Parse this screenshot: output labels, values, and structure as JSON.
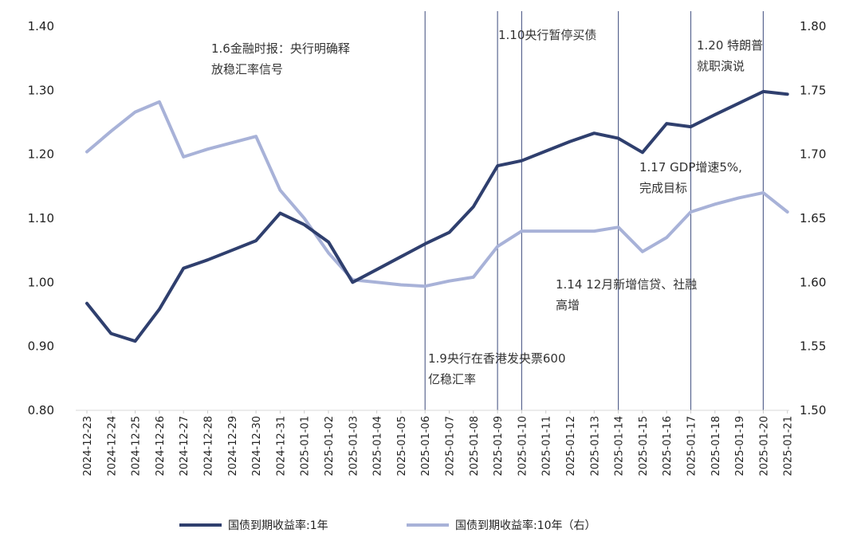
{
  "chart_data": {
    "type": "line",
    "title": "",
    "x": [
      "2024-12-23",
      "2024-12-24",
      "2024-12-25",
      "2024-12-26",
      "2024-12-27",
      "2024-12-28",
      "2024-12-29",
      "2024-12-30",
      "2024-12-31",
      "2025-01-01",
      "2025-01-02",
      "2025-01-03",
      "2025-01-04",
      "2025-01-05",
      "2025-01-06",
      "2025-01-07",
      "2025-01-08",
      "2025-01-09",
      "2025-01-10",
      "2025-01-11",
      "2025-01-12",
      "2025-01-13",
      "2025-01-14",
      "2025-01-15",
      "2025-01-16",
      "2025-01-17",
      "2025-01-18",
      "2025-01-19",
      "2025-01-20",
      "2025-01-21"
    ],
    "y_left": {
      "range": [
        0.8,
        1.4
      ],
      "ticks": [
        "0.80",
        "0.90",
        "1.00",
        "1.10",
        "1.20",
        "1.30",
        "1.40"
      ]
    },
    "y_right": {
      "range": [
        1.5,
        1.8
      ],
      "ticks": [
        "1.50",
        "1.55",
        "1.60",
        "1.65",
        "1.70",
        "1.75",
        "1.80"
      ]
    },
    "series": [
      {
        "name": "国债到期收益率:1年",
        "axis": "left",
        "color": "#2f3f6e",
        "values": [
          0.967,
          0.92,
          0.908,
          0.958,
          1.022,
          1.035,
          1.05,
          1.065,
          1.108,
          1.09,
          1.063,
          1.0,
          1.02,
          1.04,
          1.06,
          1.078,
          1.118,
          1.182,
          1.19,
          1.205,
          1.22,
          1.233,
          1.225,
          1.203,
          1.248,
          1.243,
          1.262,
          1.28,
          1.298,
          1.294
        ]
      },
      {
        "name": "国债到期收益率:10年（右）",
        "axis": "right",
        "color": "#a8b2d8",
        "values": [
          1.702,
          1.718,
          1.733,
          1.741,
          1.698,
          1.704,
          1.709,
          1.714,
          1.672,
          1.65,
          1.623,
          1.602,
          1.6,
          1.598,
          1.597,
          1.601,
          1.604,
          1.628,
          1.64,
          1.64,
          1.64,
          1.64,
          1.643,
          1.624,
          1.635,
          1.655,
          1.661,
          1.666,
          1.67,
          1.655
        ]
      }
    ],
    "event_lines_at": [
      "2025-01-06",
      "2025-01-09",
      "2025-01-10",
      "2025-01-14",
      "2025-01-17",
      "2025-01-20"
    ],
    "annotations": [
      {
        "lines": [
          "1.6金融时报：央行明确释",
          "放稳汇率信号"
        ]
      },
      {
        "lines": [
          "1.10央行暂停买债"
        ]
      },
      {
        "lines": [
          "1.20 特朗普",
          "就职演说"
        ]
      },
      {
        "lines": [
          "1.17 GDP增速5%,",
          "完成目标"
        ]
      },
      {
        "lines": [
          "1.14 12月新增信贷、社融",
          "高增"
        ]
      },
      {
        "lines": [
          "1.9央行在香港发央票600",
          "亿稳汇率"
        ]
      }
    ],
    "legend_position": "bottom",
    "grid": false
  }
}
